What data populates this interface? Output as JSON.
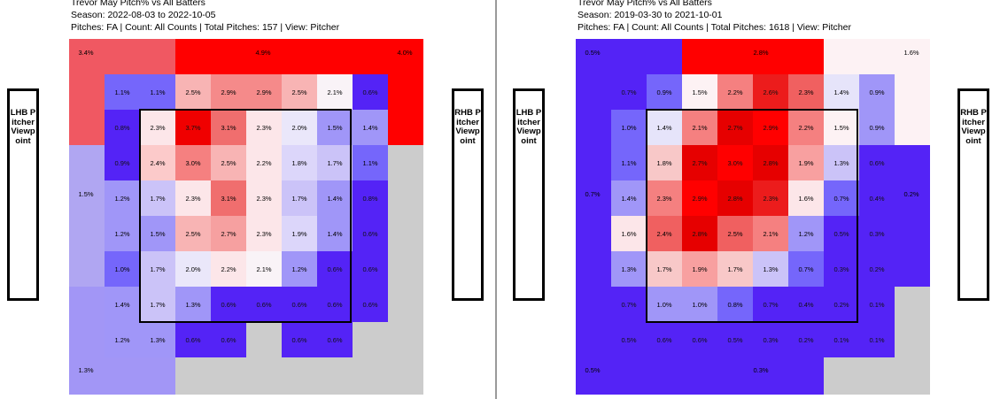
{
  "chart_data": [
    {
      "type": "heatmap",
      "title": "Trevor May Pitch% vs All Batters",
      "season": "Season: 2022-08-03 to 2022-10-05",
      "info": "Pitches: FA | Count: All Counts | Total Pitches: 157 | View: Pitcher",
      "left_label": "LHB Pitcher Viewpoint",
      "right_label": "RHB Pitcher Viewpoint",
      "outer_zones": {
        "top_left": "3.4%",
        "top_middle": "4.9%",
        "top_right": "4.0%",
        "left": "1.5%",
        "bottom_left": "1.3%",
        "bottom_right": ""
      },
      "grid": [
        [
          "1.1%",
          "1.1%",
          "2.5%",
          "2.9%",
          "2.9%",
          "2.5%",
          "2.1%",
          "0.6%"
        ],
        [
          "0.8%",
          "2.3%",
          "3.7%",
          "3.1%",
          "2.3%",
          "2.0%",
          "1.5%",
          "1.4%"
        ],
        [
          "0.9%",
          "2.4%",
          "3.0%",
          "2.5%",
          "2.2%",
          "1.8%",
          "1.7%",
          "1.1%"
        ],
        [
          "1.2%",
          "1.7%",
          "2.3%",
          "3.1%",
          "2.3%",
          "1.7%",
          "1.4%",
          "0.8%"
        ],
        [
          "1.2%",
          "1.5%",
          "2.5%",
          "2.7%",
          "2.3%",
          "1.9%",
          "1.4%",
          "0.6%"
        ],
        [
          "1.0%",
          "1.7%",
          "2.0%",
          "2.2%",
          "2.1%",
          "1.2%",
          "0.6%",
          "0.6%"
        ],
        [
          "1.4%",
          "1.7%",
          "1.3%",
          "0.6%",
          "0.6%",
          "0.6%",
          "0.6%",
          "0.6%"
        ],
        [
          "1.2%",
          "1.3%",
          "0.6%",
          "0.6%",
          "",
          "0.6%",
          "0.6%",
          ""
        ]
      ],
      "colors": {
        "outer_zones": {
          "top_left": "#f05862",
          "top_middle": "#ff0000",
          "top_right": "#ff0000",
          "left": "#b0a6f2",
          "bottom_left": "#a296f6",
          "bottom_right": "#cccccc"
        },
        "grid": [
          [
            "#7566fb",
            "#7566fb",
            "#f8b4b4",
            "#f58a8a",
            "#f58a8a",
            "#f8b4b4",
            "#f9f3f7",
            "#5423f6"
          ],
          [
            "#5423f6",
            "#fce6e9",
            "#f00000",
            "#f06e6e",
            "#fce6e9",
            "#eae7fa",
            "#a096f8",
            "#a096f8"
          ],
          [
            "#5423f6",
            "#fccaca",
            "#f58080",
            "#f8b4b4",
            "#fce6e9",
            "#dcd6fa",
            "#cbc3f8",
            "#7566fb"
          ],
          [
            "#a096f8",
            "#cbc3f8",
            "#fce6e9",
            "#f06e6e",
            "#fce6e9",
            "#cbc3f8",
            "#a096f8",
            "#5423f6"
          ],
          [
            "#a096f8",
            "#a096f8",
            "#f8b4b4",
            "#f6a0a0",
            "#fce6e9",
            "#dcd6fa",
            "#a096f8",
            "#5423f6"
          ],
          [
            "#7566fb",
            "#cbc3f8",
            "#eae7fa",
            "#fce6e9",
            "#f9f3f7",
            "#a096f8",
            "#5423f6",
            "#5423f6"
          ],
          [
            "#a096f8",
            "#cbc3f8",
            "#a096f8",
            "#5423f6",
            "#5423f6",
            "#5423f6",
            "#5423f6",
            "#5423f6"
          ],
          [
            "#a096f8",
            "#a096f8",
            "#5423f6",
            "#5423f6",
            "#cccccc",
            "#5423f6",
            "#5423f6",
            "#cccccc"
          ]
        ]
      }
    },
    {
      "type": "heatmap",
      "title": "Trevor May Pitch% vs All Batters",
      "season": "Season: 2019-03-30 to 2021-10-01",
      "info": "Pitches: FA | Count: All Counts | Total Pitches: 1618 | View: Pitcher",
      "left_label": "LHB Pitcher Viewpoint",
      "right_label": "RHB Pitcher Viewpoint",
      "outer_zones": {
        "top_left": "0.5%",
        "top_middle": "2.8%",
        "top_right": "1.6%",
        "left": "0.7%",
        "right": "0.2%",
        "bottom_left": "0.5%",
        "bottom_middle": "0.3%"
      },
      "grid": [
        [
          "0.7%",
          "0.9%",
          "1.5%",
          "2.2%",
          "2.6%",
          "2.3%",
          "1.4%",
          "0.9%"
        ],
        [
          "1.0%",
          "1.4%",
          "2.1%",
          "2.7%",
          "2.9%",
          "2.2%",
          "1.5%",
          "0.9%"
        ],
        [
          "1.1%",
          "1.8%",
          "2.7%",
          "3.0%",
          "2.8%",
          "1.9%",
          "1.3%",
          "0.6%"
        ],
        [
          "1.4%",
          "2.3%",
          "2.9%",
          "2.8%",
          "2.3%",
          "1.6%",
          "0.7%",
          "0.4%"
        ],
        [
          "1.6%",
          "2.4%",
          "2.8%",
          "2.5%",
          "2.1%",
          "1.2%",
          "0.5%",
          "0.3%"
        ],
        [
          "1.3%",
          "1.7%",
          "1.9%",
          "1.7%",
          "1.3%",
          "0.7%",
          "0.3%",
          "0.2%"
        ],
        [
          "0.7%",
          "1.0%",
          "1.0%",
          "0.8%",
          "0.7%",
          "0.4%",
          "0.2%",
          "0.1%"
        ],
        [
          "0.5%",
          "0.6%",
          "0.6%",
          "0.5%",
          "0.3%",
          "0.2%",
          "0.1%",
          "0.1%"
        ]
      ],
      "colors": {
        "outer_zones": {
          "top_left": "#5423f6",
          "top_middle": "#ff0000",
          "top_right": "#fdf2f4",
          "left": "#5423f6",
          "right": "#5423f6",
          "bottom_left": "#5423f6",
          "bottom_middle": "#5423f6",
          "bottom_right": "#cccccc"
        },
        "grid": [
          [
            "#5423f6",
            "#7566fb",
            "#fdf2f4",
            "#f58080",
            "#ec1c1c",
            "#f06060",
            "#e6e4fa",
            "#a096f8"
          ],
          [
            "#7566fb",
            "#e6e4fa",
            "#f58080",
            "#e60000",
            "#ff0000",
            "#f58080",
            "#fdf2f4",
            "#a096f8"
          ],
          [
            "#7566fb",
            "#f8c8c8",
            "#e60000",
            "#ff0000",
            "#e60000",
            "#f8a0a0",
            "#cbc3f8",
            "#5423f6"
          ],
          [
            "#a096f8",
            "#f58080",
            "#ff0000",
            "#e60000",
            "#ec1c1c",
            "#fce6e9",
            "#7566fb",
            "#5423f6"
          ],
          [
            "#fce6e9",
            "#f06060",
            "#e60000",
            "#f06060",
            "#f58080",
            "#a096f8",
            "#5423f6",
            "#5423f6"
          ],
          [
            "#a096f8",
            "#f8c8c8",
            "#f8a0a0",
            "#f8c8c8",
            "#cbc3f8",
            "#7566fb",
            "#5423f6",
            "#5423f6"
          ],
          [
            "#5423f6",
            "#a096f8",
            "#a096f8",
            "#7566fb",
            "#5423f6",
            "#5423f6",
            "#5423f6",
            "#5423f6"
          ],
          [
            "#5423f6",
            "#5423f6",
            "#5423f6",
            "#5423f6",
            "#5423f6",
            "#5423f6",
            "#5423f6",
            "#5423f6"
          ]
        ]
      }
    }
  ]
}
